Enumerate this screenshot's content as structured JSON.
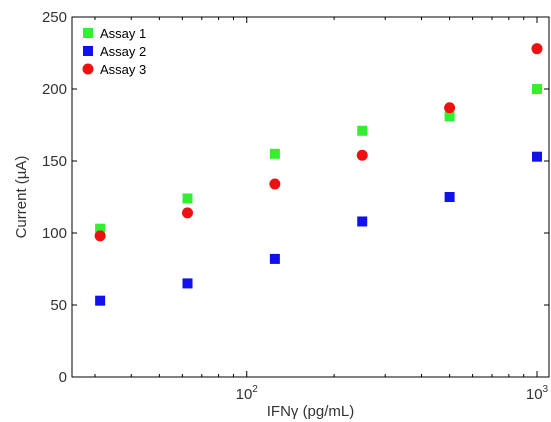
{
  "chart_data": {
    "type": "scatter",
    "xscale": "log",
    "xlabel": "IFNγ (pg/mL)",
    "ylabel": "Current (µA)",
    "xlim": [
      25,
      1100
    ],
    "ylim": [
      0,
      250
    ],
    "yticks": [
      0,
      50,
      100,
      150,
      200,
      250
    ],
    "xticks": [
      {
        "value": 100,
        "base": "10",
        "exp": "2"
      },
      {
        "value": 1000,
        "base": "10",
        "exp": "3"
      }
    ],
    "legend_position": "top-left",
    "series": [
      {
        "name": "Assay 1",
        "marker": "square",
        "color": "#33ee33",
        "x": [
          31.25,
          62.5,
          125,
          250,
          500,
          1000
        ],
        "y": [
          103,
          124,
          155,
          171,
          181,
          200
        ]
      },
      {
        "name": "Assay 2",
        "marker": "square",
        "color": "#1111ee",
        "x": [
          31.25,
          62.5,
          125,
          250,
          500,
          1000
        ],
        "y": [
          53,
          65,
          82,
          108,
          125,
          153
        ]
      },
      {
        "name": "Assay 3",
        "marker": "circle",
        "color": "#ee1111",
        "x": [
          31.25,
          62.5,
          125,
          250,
          500,
          1000
        ],
        "y": [
          98,
          114,
          134,
          154,
          187,
          228
        ]
      }
    ]
  }
}
